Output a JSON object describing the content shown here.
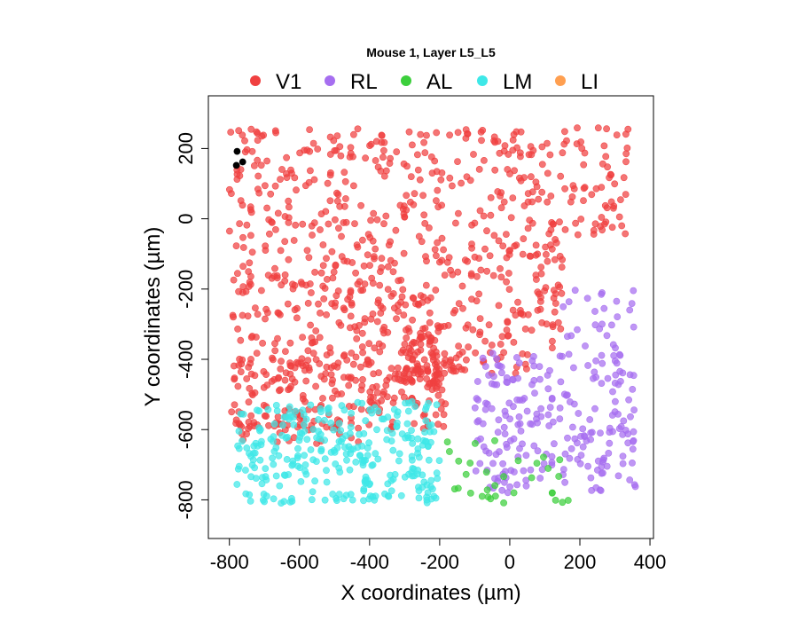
{
  "chart_data": {
    "type": "scatter",
    "title": "Mouse 1, Layer L5_L5",
    "xlabel": "X coordinates (µm)",
    "ylabel": "Y coordinates (µm)",
    "xlim": [
      -860,
      410
    ],
    "ylim": [
      -910,
      350
    ],
    "xticks": [
      -800,
      -600,
      -400,
      -200,
      0,
      200,
      400
    ],
    "yticks": [
      -800,
      -600,
      -400,
      -200,
      0,
      200
    ],
    "grid": false,
    "legend_position": "top",
    "legend": [
      {
        "label": "V1",
        "color": "#f04040"
      },
      {
        "label": "RL",
        "color": "#a66ef0"
      },
      {
        "label": "AL",
        "color": "#3ccf3c"
      },
      {
        "label": "LM",
        "color": "#3ee8e8"
      },
      {
        "label": "LI",
        "color": "#ff9f50"
      }
    ],
    "series": [
      {
        "name": "V1",
        "color": "#f04040",
        "regions": [
          {
            "x": [
              -800,
              350
            ],
            "y": [
              -50,
              260
            ],
            "n": 330
          },
          {
            "x": [
              -800,
              150
            ],
            "y": [
              -400,
              -50
            ],
            "n": 360
          },
          {
            "x": [
              -800,
              -180
            ],
            "y": [
              -600,
              -400
            ],
            "n": 230
          },
          {
            "x": [
              -780,
              -420
            ],
            "y": [
              -640,
              -580
            ],
            "n": 30
          },
          {
            "x": [
              -320,
              -200
            ],
            "y": [
              -480,
              -300
            ],
            "n": 70
          },
          {
            "x": [
              -200,
              50
            ],
            "y": [
              -440,
              -380
            ],
            "n": 25
          }
        ]
      },
      {
        "name": "RL",
        "color": "#a66ef0",
        "regions": [
          {
            "x": [
              -100,
              360
            ],
            "y": [
              -780,
              -380
            ],
            "n": 230
          },
          {
            "x": [
              150,
              360
            ],
            "y": [
              -400,
              -190
            ],
            "n": 25
          }
        ]
      },
      {
        "name": "AL",
        "color": "#3ccf3c",
        "regions": [
          {
            "x": [
              -180,
              180
            ],
            "y": [
              -810,
              -630
            ],
            "n": 32
          }
        ]
      },
      {
        "name": "LM",
        "color": "#3ee8e8",
        "regions": [
          {
            "x": [
              -780,
              -200
            ],
            "y": [
              -810,
              -520
            ],
            "n": 300
          }
        ]
      },
      {
        "name": "",
        "color": "#000000",
        "points": [
          {
            "x": -778,
            "y": 192
          },
          {
            "x": -780,
            "y": 152
          },
          {
            "x": -762,
            "y": 162
          }
        ]
      }
    ]
  }
}
